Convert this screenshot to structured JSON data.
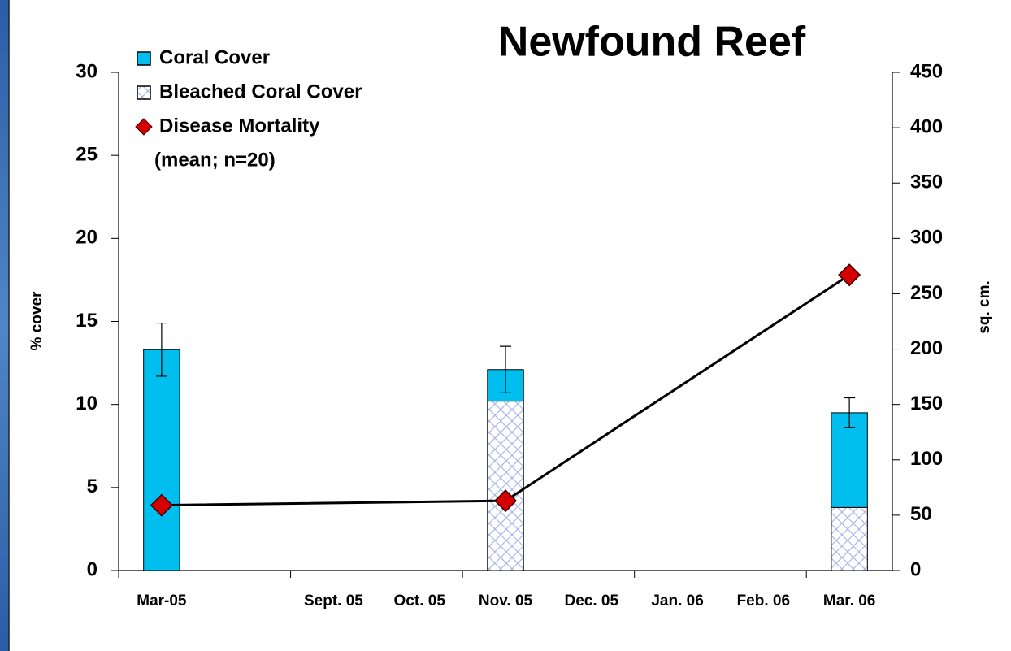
{
  "chart_data": {
    "type": "bar",
    "title": "Newfound Reef",
    "y_label": "% cover",
    "y2_label": "sq. cm.",
    "categories": [
      "Mar-05",
      null,
      "Sept. 05",
      "Oct. 05",
      "Nov. 05",
      "Dec. 05",
      "Jan. 06",
      "Feb. 06",
      "Mar. 06"
    ],
    "series": [
      {
        "name": "Coral Cover",
        "type": "bar",
        "color": "#00bfef",
        "values": [
          13.3,
          null,
          null,
          null,
          1.9,
          null,
          null,
          null,
          5.7
        ],
        "errors": [
          1.6,
          null,
          null,
          null,
          1.4,
          null,
          null,
          null,
          0.9
        ]
      },
      {
        "name": "Bleached Coral Cover",
        "type": "bar",
        "color": "#a9b8e8",
        "hatch": true,
        "values": [
          0,
          null,
          null,
          null,
          10.2,
          null,
          null,
          null,
          3.8
        ]
      },
      {
        "name": "Disease Mortality",
        "type": "line",
        "axis": "y2",
        "color": "#d40000",
        "values": [
          59,
          null,
          null,
          null,
          63,
          null,
          null,
          null,
          267
        ]
      }
    ],
    "legend_note": "(mean; n=20)",
    "stack_base": 1,
    "connect_gaps": true,
    "legend": "top-left",
    "ylim": [
      0,
      30
    ],
    "yticks": [
      0,
      5,
      10,
      15,
      20,
      25,
      30
    ],
    "y2lim": [
      0,
      450
    ],
    "y2ticks": [
      0,
      50,
      100,
      150,
      200,
      250,
      300,
      350,
      400,
      450
    ]
  }
}
